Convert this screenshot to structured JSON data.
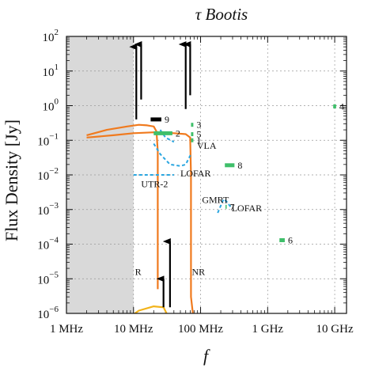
{
  "chart_data": {
    "type": "scatter",
    "title": "τ Bootis",
    "xlabel": "f",
    "ylabel": "Flux Density [Jy]",
    "xscale": "log",
    "yscale": "log",
    "xlim_hz": [
      1000000,
      15000000000
    ],
    "ylim_jy": [
      1e-06,
      100
    ],
    "grid": true,
    "x_ticks": [
      {
        "value": 1000000,
        "label": "1 MHz"
      },
      {
        "value": 10000000,
        "label": "10 MHz"
      },
      {
        "value": 100000000,
        "label": "100 MHz"
      },
      {
        "value": 1000000000,
        "label": "1 GHz"
      },
      {
        "value": 10000000000,
        "label": "10 GHz"
      }
    ],
    "y_ticks": [
      {
        "exp": 2,
        "label": "10",
        "sup": "2"
      },
      {
        "exp": 1,
        "label": "10",
        "sup": "1"
      },
      {
        "exp": 0,
        "label": "10",
        "sup": "0"
      },
      {
        "exp": -1,
        "label": "10",
        "sup": "−1"
      },
      {
        "exp": -2,
        "label": "10",
        "sup": "−2"
      },
      {
        "exp": -3,
        "label": "10",
        "sup": "−3"
      },
      {
        "exp": -4,
        "label": "10",
        "sup": "−4"
      },
      {
        "exp": -5,
        "label": "10",
        "sup": "−5"
      },
      {
        "exp": -6,
        "label": "10",
        "sup": "−6"
      }
    ],
    "shaded_region_hz": [
      1000000,
      10000000
    ],
    "colors": {
      "model": "#f07a1e",
      "model_low": "#f2b31a",
      "limit_green": "#3fbf6a",
      "dashed_blue": "#2aa6e0",
      "shade": "#d9d9d9",
      "arrow": "#000000",
      "label_9_bar": "#000000"
    },
    "measurements": [
      {
        "label": "9",
        "f_hz": [
          18000000,
          26000000
        ],
        "flux_jy": 0.4,
        "color": "#000000"
      },
      {
        "label": "2",
        "f_hz": [
          20000000,
          38000000
        ],
        "flux_jy": 0.16,
        "color": "#3fbf6a"
      },
      {
        "label": "3",
        "f_hz": [
          72000000,
          78000000
        ],
        "flux_jy": 0.28,
        "color": "#3fbf6a"
      },
      {
        "label": "5",
        "f_hz": [
          72000000,
          78000000
        ],
        "flux_jy": 0.15,
        "color": "#3fbf6a"
      },
      {
        "label": "1",
        "f_hz": [
          72000000,
          78000000
        ],
        "flux_jy": 0.1,
        "color": "#3fbf6a"
      },
      {
        "label": "8",
        "f_hz": [
          230000000,
          320000000
        ],
        "flux_jy": 0.019,
        "color": "#3fbf6a"
      },
      {
        "label": "7",
        "f_hz": [
          235000000,
          245000000
        ],
        "flux_jy": 0.0012,
        "color": "#3fbf6a"
      },
      {
        "label": "6",
        "f_hz": [
          1500000000,
          1800000000
        ],
        "flux_jy": 0.00013,
        "color": "#3fbf6a"
      },
      {
        "label": "4",
        "f_hz": [
          9500000000,
          10500000000
        ],
        "flux_jy": 0.95,
        "color": "#3fbf6a"
      }
    ],
    "instrument_labels": [
      {
        "text": "VLA",
        "f_hz": 88000000,
        "flux_jy": 0.07
      },
      {
        "text": "LOFAR",
        "f_hz": 50000000,
        "flux_jy": 0.011
      },
      {
        "text": "UTR-2",
        "f_hz": 13000000,
        "flux_jy": 0.0055
      },
      {
        "text": "GMRT",
        "f_hz": 105000000,
        "flux_jy": 0.0019
      },
      {
        "text": "LOFAR",
        "f_hz": 290000000,
        "flux_jy": 0.0011
      },
      {
        "text": "R",
        "f_hz": 10500000,
        "flux_jy": 1.6e-05
      },
      {
        "text": "NR",
        "f_hz": 74000000,
        "flux_jy": 1.6e-05
      }
    ],
    "curves": [
      {
        "name_ref": "model_high_a",
        "color": "#f07a1e",
        "dash": false,
        "points": [
          [
            2000000,
            0.14
          ],
          [
            4000000,
            0.2
          ],
          [
            8000000,
            0.25
          ],
          [
            12000000,
            0.28
          ],
          [
            16000000,
            0.27
          ],
          [
            20000000,
            0.25
          ],
          [
            22000000,
            0.18
          ],
          [
            23000000,
            0.05
          ],
          [
            23000000,
            5e-06
          ]
        ]
      },
      {
        "name_ref": "model_high_b",
        "color": "#f07a1e",
        "dash": false,
        "points": [
          [
            2000000,
            0.12
          ],
          [
            5000000,
            0.14
          ],
          [
            10000000,
            0.16
          ],
          [
            20000000,
            0.17
          ],
          [
            40000000,
            0.16
          ],
          [
            60000000,
            0.15
          ],
          [
            70000000,
            0.12
          ],
          [
            72000000,
            0.01
          ],
          [
            72000000,
            3e-06
          ],
          [
            80000000,
            5e-07
          ]
        ]
      },
      {
        "name_ref": "model_low",
        "color": "#f2b31a",
        "dash": false,
        "points": [
          [
            8000000,
            7e-07
          ],
          [
            12000000,
            1.2e-06
          ],
          [
            20000000,
            1.6e-06
          ],
          [
            28000000,
            1.5e-06
          ],
          [
            33000000,
            8e-07
          ],
          [
            35000000,
            3e-07
          ]
        ]
      },
      {
        "name_ref": "limit_a",
        "color": "#2aa6e0",
        "dash": true,
        "points": [
          [
            10000000,
            0.01
          ],
          [
            20000000,
            0.01
          ],
          [
            40000000,
            0.01
          ]
        ]
      },
      {
        "name_ref": "limit_b",
        "color": "#2aa6e0",
        "dash": true,
        "points": [
          [
            20000000,
            0.08
          ],
          [
            25000000,
            0.04
          ],
          [
            35000000,
            0.02
          ],
          [
            50000000,
            0.018
          ],
          [
            60000000,
            0.02
          ],
          [
            72000000,
            0.04
          ]
        ]
      },
      {
        "name_ref": "limit_c",
        "color": "#2aa6e0",
        "dash": true,
        "points": [
          [
            25000000,
            0.2
          ],
          [
            30000000,
            0.12
          ],
          [
            40000000,
            0.09
          ]
        ]
      },
      {
        "name_ref": "limit_d",
        "color": "#2aa6e0",
        "dash": true,
        "points": [
          [
            180000000,
            0.0008
          ],
          [
            200000000,
            0.0013
          ],
          [
            220000000,
            0.002
          ],
          [
            245000000,
            0.0017
          ],
          [
            280000000,
            0.0012
          ]
        ]
      }
    ],
    "arrows": [
      {
        "f_hz": 11000000,
        "from_jy": 0.4,
        "to_jy": 50
      },
      {
        "f_hz": 13000000,
        "from_jy": 1.5,
        "to_jy": 2000
      },
      {
        "f_hz": 60000000,
        "from_jy": 0.8,
        "to_jy": 60
      },
      {
        "f_hz": 70000000,
        "from_jy": 2,
        "to_jy": 800
      },
      {
        "f_hz": 35000000,
        "from_jy": 1.5e-06,
        "to_jy": 0.00012
      },
      {
        "f_hz": 28000000,
        "from_jy": 1.5e-06,
        "to_jy": 1e-05
      }
    ]
  }
}
